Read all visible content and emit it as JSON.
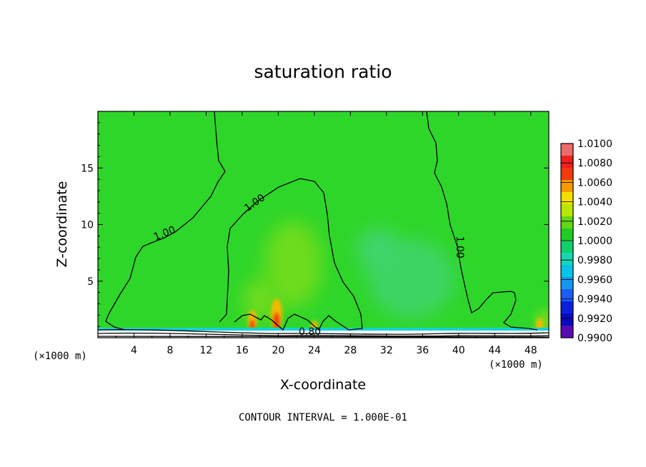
{
  "chart_data": {
    "type": "heatmap",
    "title": "saturation ratio",
    "xlabel": "X-coordinate",
    "ylabel": "Z-coordinate",
    "x_unit": "(×1000 m)",
    "x_unit_right": "(×1000 m)",
    "xlim": [
      0,
      50
    ],
    "ylim": [
      0,
      20
    ],
    "xticks": [
      4,
      8,
      12,
      16,
      20,
      24,
      28,
      32,
      36,
      40,
      44,
      48
    ],
    "yticks": [
      5,
      10,
      15
    ],
    "contour_interval_text": "CONTOUR INTERVAL = 1.000E-01",
    "contour_labels": [
      {
        "text": "1.00",
        "x": 7.4,
        "z": 9.2
      },
      {
        "text": "1.00",
        "x": 17.4,
        "z": 11.9
      },
      {
        "text": "1.00",
        "x": 40.1,
        "z": 8.0
      },
      {
        "text": "0.80",
        "x": 23.5,
        "z": 0.5
      }
    ],
    "colorbar": {
      "labels": [
        "1.0100",
        "1.0080",
        "1.0060",
        "1.0040",
        "1.0020",
        "1.0000",
        "0.9980",
        "0.9960",
        "0.9940",
        "0.9920",
        "0.9900"
      ],
      "colors": [
        "#ee6b6b",
        "#ee2020",
        "#f23a0c",
        "#f59a00",
        "#f2e000",
        "#b9e600",
        "#62d815",
        "#20cc25",
        "#10d06a",
        "#14d8b4",
        "#04c4e8",
        "#1497ee",
        "#1c5cf2",
        "#0a20dc",
        "#0a0abe",
        "#5a0cb4"
      ]
    },
    "field": {
      "background_color": "#2fd62a",
      "moist_color": "#6ddc1c",
      "warm_color": "#f5b800",
      "hot_color": "#f23a0c",
      "dry_color": "#40d46a",
      "cyan_color": "#14d2d6"
    }
  }
}
